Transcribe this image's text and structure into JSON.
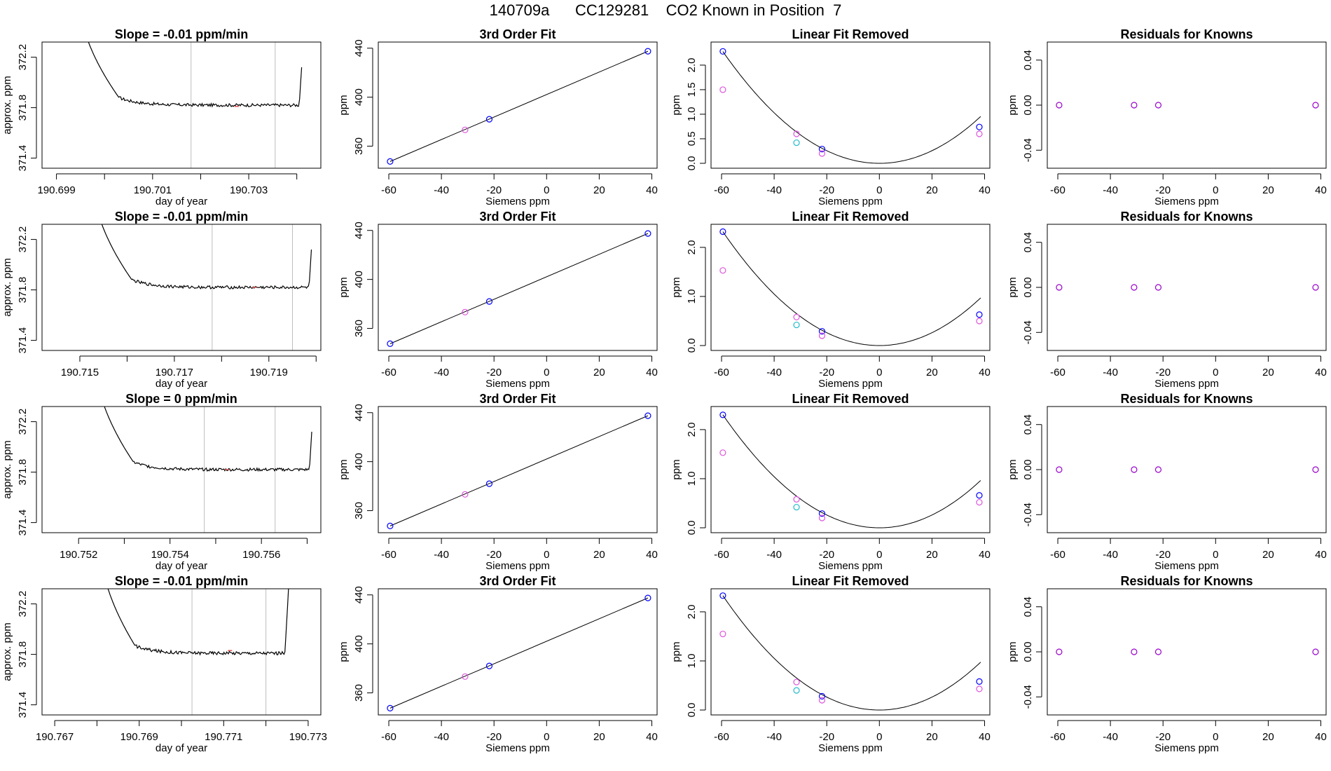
{
  "figure_title": "140709a      CC129281    CO2 Known in Position  7",
  "colors": {
    "frame": "#000000",
    "trace": "#000000",
    "fit_curve": "#000000",
    "grid_vline": "#bdbdbd",
    "point_blue": "#0000ff",
    "point_magenta": "#dd55dd",
    "point_cyan": "#22bbcc",
    "point_purple": "#9900cc",
    "trace_marker_red": "#e05050"
  },
  "chart_data": [
    {
      "type": "line",
      "panel": "time-trace",
      "row": 0,
      "title": "Slope =  -0.01  ppm/min",
      "xlabel": "day of year",
      "ylabel": "approx. ppm",
      "xlim": [
        190.6987,
        190.7045
      ],
      "ylim": [
        371.32,
        372.32
      ],
      "xticks": [
        190.699,
        190.7,
        190.701,
        190.702,
        190.703,
        190.704
      ],
      "xtick_labels": [
        "190.699",
        "",
        "190.701",
        "",
        "190.703",
        ""
      ],
      "yticks": [
        371.4,
        371.8,
        372.2
      ],
      "ytick_labels": [
        "371.4",
        "371.8",
        "372.2"
      ],
      "vlines": [
        190.7018,
        190.70355
      ],
      "trace": {
        "x_start": 190.6995,
        "x_end": 190.7041,
        "rise_x": 190.7003,
        "fall_x": 190.70405,
        "plateau": 371.82,
        "noise": 0.012
      },
      "marker": {
        "x": 190.70275,
        "y": 371.81
      }
    },
    {
      "type": "line",
      "panel": "fit",
      "row": 0,
      "title": "3rd Order Fit",
      "xlabel": "Siemens ppm",
      "ylabel": "ppm",
      "xlim": [
        -64,
        42
      ],
      "ylim": [
        342,
        445
      ],
      "xticks": [
        -60,
        -40,
        -20,
        0,
        20,
        40
      ],
      "xtick_labels": [
        "-60",
        "-40",
        "-20",
        "0",
        "20",
        "40"
      ],
      "yticks": [
        360,
        400,
        440
      ],
      "ytick_labels": [
        "360",
        "400",
        "440"
      ],
      "line": {
        "x": [
          -59.5,
          38.5
        ],
        "y": [
          347.5,
          437.5
        ]
      },
      "points": [
        {
          "x": -59.5,
          "y": 347.5,
          "c": "point_blue"
        },
        {
          "x": -31.0,
          "y": 373.3,
          "c": "point_magenta"
        },
        {
          "x": -21.8,
          "y": 382.0,
          "c": "point_blue"
        },
        {
          "x": 38.5,
          "y": 437.5,
          "c": "point_blue"
        }
      ]
    },
    {
      "type": "scatter",
      "panel": "quad",
      "row": 0,
      "title": "Linear Fit Removed",
      "xlabel": "Siemens ppm",
      "ylabel": "ppm",
      "xlim": [
        -64,
        42
      ],
      "ylim": [
        -0.1,
        2.47
      ],
      "xticks": [
        -60,
        -40,
        -20,
        0,
        20,
        40
      ],
      "xtick_labels": [
        "-60",
        "-40",
        "-20",
        "0",
        "20",
        "40"
      ],
      "yticks": [
        0,
        0.5,
        1.0,
        1.5,
        2.0
      ],
      "ytick_labels": [
        "0.0",
        "0.5",
        "1.0",
        "1.5",
        "2.0"
      ],
      "curve_coef": 0.000643,
      "curve_x": [
        -59.5,
        38.5
      ],
      "points": [
        {
          "x": -59.5,
          "y": 2.28,
          "c": "point_blue"
        },
        {
          "x": -59.5,
          "y": 1.5,
          "c": "point_magenta"
        },
        {
          "x": -31.5,
          "y": 0.6,
          "c": "point_magenta"
        },
        {
          "x": -31.5,
          "y": 0.42,
          "c": "point_cyan"
        },
        {
          "x": -21.8,
          "y": 0.29,
          "c": "point_blue"
        },
        {
          "x": -21.8,
          "y": 0.2,
          "c": "point_magenta"
        },
        {
          "x": 38.0,
          "y": 0.74,
          "c": "point_blue"
        },
        {
          "x": 38.0,
          "y": 0.6,
          "c": "point_magenta"
        }
      ]
    },
    {
      "type": "scatter",
      "panel": "resid",
      "row": 0,
      "title": "Residuals for Knowns",
      "xlabel": "Siemens ppm",
      "ylabel": "ppm",
      "xlim": [
        -64,
        42
      ],
      "ylim": [
        -0.056,
        0.056
      ],
      "xticks": [
        -60,
        -40,
        -20,
        0,
        20,
        40
      ],
      "xtick_labels": [
        "-60",
        "-40",
        "-20",
        "0",
        "20",
        "40"
      ],
      "yticks": [
        -0.04,
        0.0,
        0.04
      ],
      "ytick_labels": [
        "-0.04",
        "0.00",
        "0.04"
      ],
      "points": [
        {
          "x": -59.5,
          "y": 0,
          "c": "point_purple"
        },
        {
          "x": -31.0,
          "y": 0,
          "c": "point_purple"
        },
        {
          "x": -21.8,
          "y": 0,
          "c": "point_purple"
        },
        {
          "x": 38.0,
          "y": 0,
          "c": "point_purple"
        }
      ]
    },
    {
      "type": "line",
      "panel": "time-trace",
      "row": 1,
      "title": "Slope =  -0.01  ppm/min",
      "xlabel": "day of year",
      "ylabel": "approx. ppm",
      "xlim": [
        190.7142,
        190.7201
      ],
      "ylim": [
        371.32,
        372.32
      ],
      "xticks": [
        190.715,
        190.716,
        190.717,
        190.718,
        190.719,
        190.72
      ],
      "xtick_labels": [
        "190.715",
        "",
        "190.717",
        "",
        "190.719",
        ""
      ],
      "yticks": [
        371.4,
        371.8,
        372.2
      ],
      "ytick_labels": [
        "371.4",
        "371.8",
        "372.2"
      ],
      "vlines": [
        190.7178,
        190.7195
      ],
      "trace": {
        "x_start": 190.7153,
        "x_end": 190.7199,
        "rise_x": 190.7161,
        "fall_x": 190.71985,
        "plateau": 371.82,
        "noise": 0.012
      },
      "marker": {
        "x": 190.7187,
        "y": 371.82
      }
    },
    {
      "type": "line",
      "panel": "fit",
      "row": 1,
      "title": "3rd Order Fit",
      "xlabel": "Siemens ppm",
      "ylabel": "ppm",
      "xlim": [
        -64,
        42
      ],
      "ylim": [
        342,
        445
      ],
      "xticks": [
        -60,
        -40,
        -20,
        0,
        20,
        40
      ],
      "xtick_labels": [
        "-60",
        "-40",
        "-20",
        "0",
        "20",
        "40"
      ],
      "yticks": [
        360,
        400,
        440
      ],
      "ytick_labels": [
        "360",
        "400",
        "440"
      ],
      "line": {
        "x": [
          -59.5,
          38.5
        ],
        "y": [
          347.5,
          437.5
        ]
      },
      "points": [
        {
          "x": -59.5,
          "y": 347.5,
          "c": "point_blue"
        },
        {
          "x": -31.0,
          "y": 373.3,
          "c": "point_magenta"
        },
        {
          "x": -21.8,
          "y": 382.0,
          "c": "point_blue"
        },
        {
          "x": 38.5,
          "y": 437.5,
          "c": "point_blue"
        }
      ]
    },
    {
      "type": "scatter",
      "panel": "quad",
      "row": 1,
      "title": "Linear Fit Removed",
      "xlabel": "Siemens ppm",
      "ylabel": "ppm",
      "xlim": [
        -64,
        42
      ],
      "ylim": [
        -0.1,
        2.47
      ],
      "xticks": [
        -60,
        -40,
        -20,
        0,
        20,
        40
      ],
      "xtick_labels": [
        "-60",
        "-40",
        "-20",
        "0",
        "20",
        "40"
      ],
      "yticks": [
        0,
        1.0,
        2.0
      ],
      "ytick_labels": [
        "0.0",
        "1.0",
        "2.0"
      ],
      "curve_coef": 0.000655,
      "curve_x": [
        -59.5,
        38.5
      ],
      "points": [
        {
          "x": -59.5,
          "y": 2.32,
          "c": "point_blue"
        },
        {
          "x": -59.5,
          "y": 1.53,
          "c": "point_magenta"
        },
        {
          "x": -31.5,
          "y": 0.58,
          "c": "point_magenta"
        },
        {
          "x": -31.5,
          "y": 0.42,
          "c": "point_cyan"
        },
        {
          "x": -21.8,
          "y": 0.29,
          "c": "point_blue"
        },
        {
          "x": -21.8,
          "y": 0.2,
          "c": "point_magenta"
        },
        {
          "x": 38.0,
          "y": 0.63,
          "c": "point_blue"
        },
        {
          "x": 38.0,
          "y": 0.5,
          "c": "point_magenta"
        }
      ]
    },
    {
      "type": "scatter",
      "panel": "resid",
      "row": 1,
      "title": "Residuals for Knowns",
      "xlabel": "Siemens ppm",
      "ylabel": "ppm",
      "xlim": [
        -64,
        42
      ],
      "ylim": [
        -0.056,
        0.056
      ],
      "xticks": [
        -60,
        -40,
        -20,
        0,
        20,
        40
      ],
      "xtick_labels": [
        "-60",
        "-40",
        "-20",
        "0",
        "20",
        "40"
      ],
      "yticks": [
        -0.04,
        0.0,
        0.04
      ],
      "ytick_labels": [
        "-0.04",
        "0.00",
        "0.04"
      ],
      "points": [
        {
          "x": -59.5,
          "y": 0,
          "c": "point_purple"
        },
        {
          "x": -31.0,
          "y": 0,
          "c": "point_purple"
        },
        {
          "x": -21.8,
          "y": 0,
          "c": "point_purple"
        },
        {
          "x": 38.0,
          "y": 0,
          "c": "point_purple"
        }
      ]
    },
    {
      "type": "line",
      "panel": "time-trace",
      "row": 2,
      "title": "Slope =  0  ppm/min",
      "xlabel": "day of year",
      "ylabel": "approx. ppm",
      "xlim": [
        190.7512,
        190.7573
      ],
      "ylim": [
        371.32,
        372.32
      ],
      "xticks": [
        190.752,
        190.753,
        190.754,
        190.755,
        190.756,
        190.757
      ],
      "xtick_labels": [
        "190.752",
        "",
        "190.754",
        "",
        "190.756",
        ""
      ],
      "yticks": [
        371.4,
        371.8,
        372.2
      ],
      "ytick_labels": [
        "371.4",
        "371.8",
        "372.2"
      ],
      "vlines": [
        190.75475,
        190.7563
      ],
      "trace": {
        "x_start": 190.7524,
        "x_end": 190.7571,
        "rise_x": 190.7532,
        "fall_x": 190.75705,
        "plateau": 371.82,
        "noise": 0.012
      },
      "marker": {
        "x": 190.75525,
        "y": 371.82
      }
    },
    {
      "type": "line",
      "panel": "fit",
      "row": 2,
      "title": "3rd Order Fit",
      "xlabel": "Siemens ppm",
      "ylabel": "ppm",
      "xlim": [
        -64,
        42
      ],
      "ylim": [
        342,
        445
      ],
      "xticks": [
        -60,
        -40,
        -20,
        0,
        20,
        40
      ],
      "xtick_labels": [
        "-60",
        "-40",
        "-20",
        "0",
        "20",
        "40"
      ],
      "yticks": [
        360,
        400,
        440
      ],
      "ytick_labels": [
        "360",
        "400",
        "440"
      ],
      "line": {
        "x": [
          -59.5,
          38.5
        ],
        "y": [
          347.5,
          437.5
        ]
      },
      "points": [
        {
          "x": -59.5,
          "y": 347.5,
          "c": "point_blue"
        },
        {
          "x": -31.0,
          "y": 373.3,
          "c": "point_magenta"
        },
        {
          "x": -21.8,
          "y": 382.0,
          "c": "point_blue"
        },
        {
          "x": 38.5,
          "y": 437.5,
          "c": "point_blue"
        }
      ]
    },
    {
      "type": "scatter",
      "panel": "quad",
      "row": 2,
      "title": "Linear Fit Removed",
      "xlabel": "Siemens ppm",
      "ylabel": "ppm",
      "xlim": [
        -64,
        42
      ],
      "ylim": [
        -0.1,
        2.47
      ],
      "xticks": [
        -60,
        -40,
        -20,
        0,
        20,
        40
      ],
      "xtick_labels": [
        "-60",
        "-40",
        "-20",
        "0",
        "20",
        "40"
      ],
      "yticks": [
        0,
        1.0,
        2.0
      ],
      "ytick_labels": [
        "0.0",
        "1.0",
        "2.0"
      ],
      "curve_coef": 0.00065,
      "curve_x": [
        -59.5,
        38.5
      ],
      "points": [
        {
          "x": -59.5,
          "y": 2.3,
          "c": "point_blue"
        },
        {
          "x": -59.5,
          "y": 1.53,
          "c": "point_magenta"
        },
        {
          "x": -31.5,
          "y": 0.58,
          "c": "point_magenta"
        },
        {
          "x": -31.5,
          "y": 0.42,
          "c": "point_cyan"
        },
        {
          "x": -21.8,
          "y": 0.29,
          "c": "point_blue"
        },
        {
          "x": -21.8,
          "y": 0.2,
          "c": "point_magenta"
        },
        {
          "x": 38.0,
          "y": 0.66,
          "c": "point_blue"
        },
        {
          "x": 38.0,
          "y": 0.52,
          "c": "point_magenta"
        }
      ]
    },
    {
      "type": "scatter",
      "panel": "resid",
      "row": 2,
      "title": "Residuals for Knowns",
      "xlabel": "Siemens ppm",
      "ylabel": "ppm",
      "xlim": [
        -64,
        42
      ],
      "ylim": [
        -0.056,
        0.056
      ],
      "xticks": [
        -60,
        -40,
        -20,
        0,
        20,
        40
      ],
      "xtick_labels": [
        "-60",
        "-40",
        "-20",
        "0",
        "20",
        "40"
      ],
      "yticks": [
        -0.04,
        0.0,
        0.04
      ],
      "ytick_labels": [
        "-0.04",
        "0.00",
        "0.04"
      ],
      "points": [
        {
          "x": -59.5,
          "y": 0,
          "c": "point_purple"
        },
        {
          "x": -31.0,
          "y": 0,
          "c": "point_purple"
        },
        {
          "x": -21.8,
          "y": 0,
          "c": "point_purple"
        },
        {
          "x": 38.0,
          "y": 0,
          "c": "point_purple"
        }
      ]
    },
    {
      "type": "line",
      "panel": "time-trace",
      "row": 3,
      "title": "Slope =  -0.01  ppm/min",
      "xlabel": "day of year",
      "ylabel": "approx. ppm",
      "xlim": [
        190.7667,
        190.7733
      ],
      "ylim": [
        371.32,
        372.32
      ],
      "xticks": [
        190.767,
        190.768,
        190.769,
        190.77,
        190.771,
        190.772,
        190.773
      ],
      "xtick_labels": [
        "190.767",
        "",
        "190.769",
        "",
        "190.771",
        "",
        "190.773"
      ],
      "yticks": [
        371.4,
        371.8,
        372.2
      ],
      "ytick_labels": [
        "371.4",
        "371.8",
        "372.2"
      ],
      "vlines": [
        190.77025,
        190.772
      ],
      "trace": {
        "x_start": 190.7681,
        "x_end": 190.7727,
        "rise_x": 190.7689,
        "fall_x": 190.77245,
        "plateau": 371.81,
        "noise": 0.013
      },
      "marker": {
        "x": 190.77115,
        "y": 371.83
      }
    },
    {
      "type": "line",
      "panel": "fit",
      "row": 3,
      "title": "3rd Order Fit",
      "xlabel": "Siemens ppm",
      "ylabel": "ppm",
      "xlim": [
        -64,
        42
      ],
      "ylim": [
        342,
        445
      ],
      "xticks": [
        -60,
        -40,
        -20,
        0,
        20,
        40
      ],
      "xtick_labels": [
        "-60",
        "-40",
        "-20",
        "0",
        "20",
        "40"
      ],
      "yticks": [
        360,
        400,
        440
      ],
      "ytick_labels": [
        "360",
        "400",
        "440"
      ],
      "line": {
        "x": [
          -59.5,
          38.5
        ],
        "y": [
          347.5,
          437.5
        ]
      },
      "points": [
        {
          "x": -59.5,
          "y": 347.5,
          "c": "point_blue"
        },
        {
          "x": -31.0,
          "y": 373.3,
          "c": "point_magenta"
        },
        {
          "x": -21.8,
          "y": 382.0,
          "c": "point_blue"
        },
        {
          "x": 38.5,
          "y": 437.5,
          "c": "point_blue"
        }
      ]
    },
    {
      "type": "scatter",
      "panel": "quad",
      "row": 3,
      "title": "Linear Fit Removed",
      "xlabel": "Siemens ppm",
      "ylabel": "ppm",
      "xlim": [
        -64,
        42
      ],
      "ylim": [
        -0.1,
        2.47
      ],
      "xticks": [
        -60,
        -40,
        -20,
        0,
        20,
        40
      ],
      "xtick_labels": [
        "-60",
        "-40",
        "-20",
        "0",
        "20",
        "40"
      ],
      "yticks": [
        0,
        1.0,
        2.0
      ],
      "ytick_labels": [
        "0.0",
        "1.0",
        "2.0"
      ],
      "curve_coef": 0.000658,
      "curve_x": [
        -59.5,
        38.5
      ],
      "points": [
        {
          "x": -59.5,
          "y": 2.33,
          "c": "point_blue"
        },
        {
          "x": -59.5,
          "y": 1.55,
          "c": "point_magenta"
        },
        {
          "x": -31.5,
          "y": 0.57,
          "c": "point_magenta"
        },
        {
          "x": -31.5,
          "y": 0.4,
          "c": "point_cyan"
        },
        {
          "x": -21.8,
          "y": 0.28,
          "c": "point_blue"
        },
        {
          "x": -21.8,
          "y": 0.2,
          "c": "point_magenta"
        },
        {
          "x": 38.0,
          "y": 0.58,
          "c": "point_blue"
        },
        {
          "x": 38.0,
          "y": 0.43,
          "c": "point_magenta"
        }
      ]
    },
    {
      "type": "scatter",
      "panel": "resid",
      "row": 3,
      "title": "Residuals for Knowns",
      "xlabel": "Siemens ppm",
      "ylabel": "ppm",
      "xlim": [
        -64,
        42
      ],
      "ylim": [
        -0.056,
        0.056
      ],
      "xticks": [
        -60,
        -40,
        -20,
        0,
        20,
        40
      ],
      "xtick_labels": [
        "-60",
        "-40",
        "-20",
        "0",
        "20",
        "40"
      ],
      "yticks": [
        -0.04,
        0.0,
        0.04
      ],
      "ytick_labels": [
        "-0.04",
        "0.00",
        "0.04"
      ],
      "points": [
        {
          "x": -59.5,
          "y": 0,
          "c": "point_purple"
        },
        {
          "x": -31.0,
          "y": 0,
          "c": "point_purple"
        },
        {
          "x": -21.8,
          "y": 0,
          "c": "point_purple"
        },
        {
          "x": 38.0,
          "y": 0,
          "c": "point_purple"
        }
      ]
    }
  ]
}
